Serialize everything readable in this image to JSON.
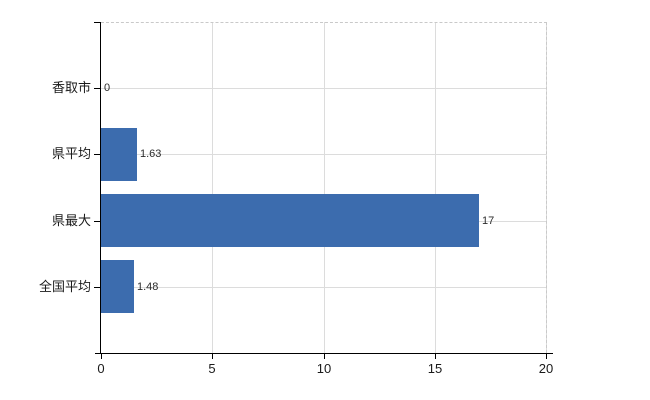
{
  "chart_data": {
    "type": "bar",
    "orientation": "horizontal",
    "title": "",
    "categories": [
      "香取市",
      "県平均",
      "県最大",
      "全国平均"
    ],
    "values": [
      0,
      1.63,
      17,
      1.48
    ],
    "value_labels": [
      "0",
      "1.63",
      "17",
      "1.48"
    ],
    "xlabel": "",
    "ylabel": "",
    "xlim": [
      0,
      20
    ],
    "x_ticks": [
      0,
      5,
      10,
      15,
      20
    ],
    "grid": true,
    "legend": "none",
    "colors": {
      "bar": "#3c6cae",
      "grid_line": "#dcdcdc",
      "border_dashed": "#c9c9c9",
      "axis_line": "#000000",
      "category_text": "#1a1a1a",
      "value_text": "#2b2b2b",
      "tick_text": "#1a1a1a",
      "background": "#ffffff"
    }
  }
}
